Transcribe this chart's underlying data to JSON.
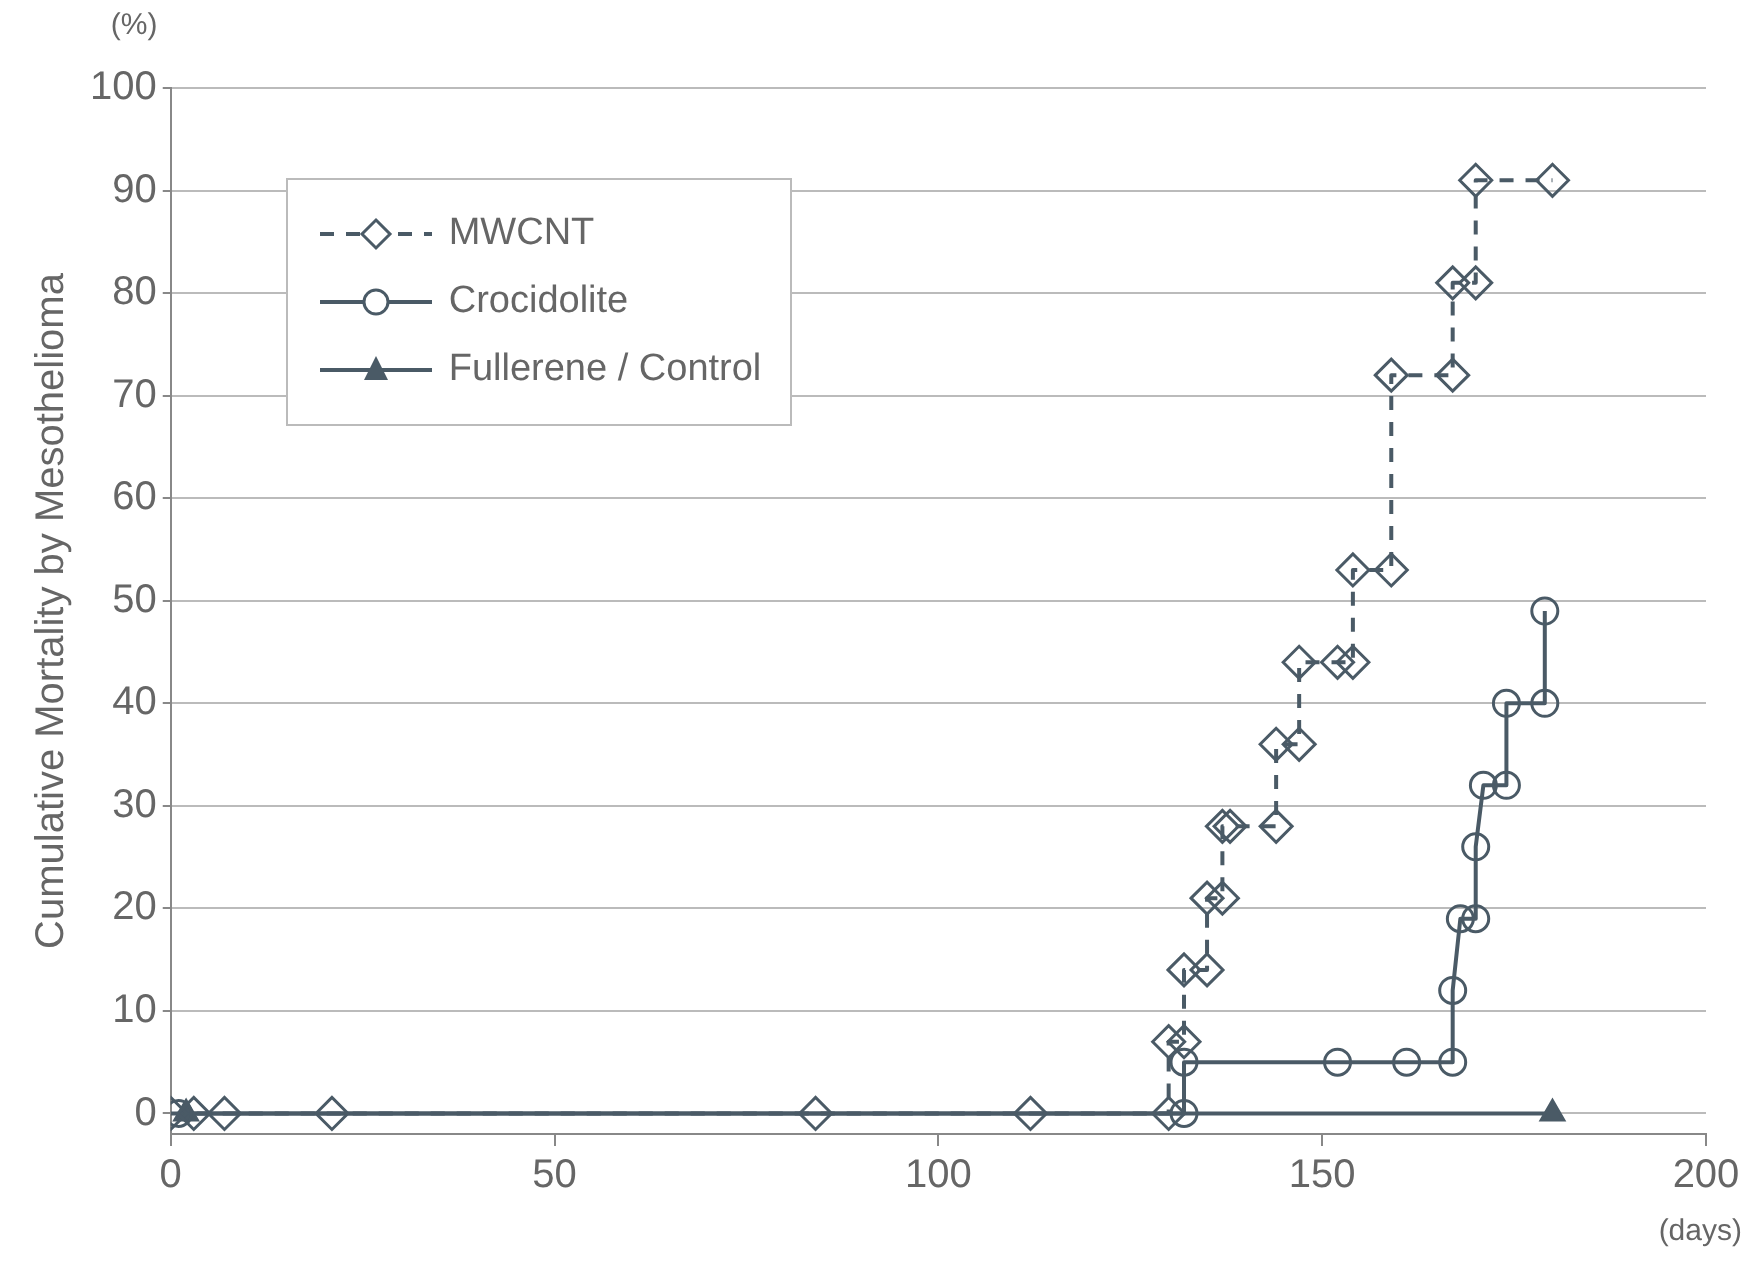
{
  "chart_data": {
    "type": "line",
    "ylabel": "Cumulative Mortality by Mesothelioma",
    "annotations": [
      "(%)",
      "(days)"
    ],
    "xlim": [
      0,
      200
    ],
    "xticks": [
      0,
      50,
      100,
      150,
      200
    ],
    "ylim": [
      -2,
      100
    ],
    "yticks": [
      0,
      10,
      20,
      30,
      40,
      50,
      60,
      70,
      80,
      90,
      100
    ],
    "grid": "y",
    "legend": "top left",
    "series": [
      {
        "name": "MWCNT",
        "color": "#4a5a66",
        "marker": "diamond",
        "line_style": "dashed",
        "x": [
          0,
          3,
          7,
          21,
          84,
          112,
          130,
          130,
          132,
          132,
          135,
          135,
          137,
          137,
          138,
          144,
          144,
          147,
          147,
          152,
          154,
          154,
          159,
          159,
          167,
          167,
          170,
          170,
          180
        ],
        "values": [
          0,
          0,
          0,
          0,
          0,
          0,
          0,
          7,
          7,
          14,
          14,
          21,
          21,
          28,
          28,
          28,
          36,
          36,
          44,
          44,
          44,
          53,
          53,
          72,
          72,
          81,
          81,
          91,
          91
        ]
      },
      {
        "name": "Crocidolite",
        "color": "#4a5a66",
        "marker": "circle",
        "line_style": "solid",
        "x": [
          1,
          132,
          132,
          152,
          161,
          167,
          167,
          168,
          170,
          170,
          171,
          174,
          174,
          179,
          179
        ],
        "values": [
          0,
          0,
          5,
          5,
          5,
          5,
          12,
          19,
          19,
          26,
          32,
          32,
          40,
          40,
          49
        ]
      },
      {
        "name": "Fullerene / Control",
        "color": "#4a5a66",
        "marker": "triangle",
        "line_style": "solid",
        "x": [
          2,
          180
        ],
        "values": [
          0,
          0
        ]
      }
    ]
  }
}
